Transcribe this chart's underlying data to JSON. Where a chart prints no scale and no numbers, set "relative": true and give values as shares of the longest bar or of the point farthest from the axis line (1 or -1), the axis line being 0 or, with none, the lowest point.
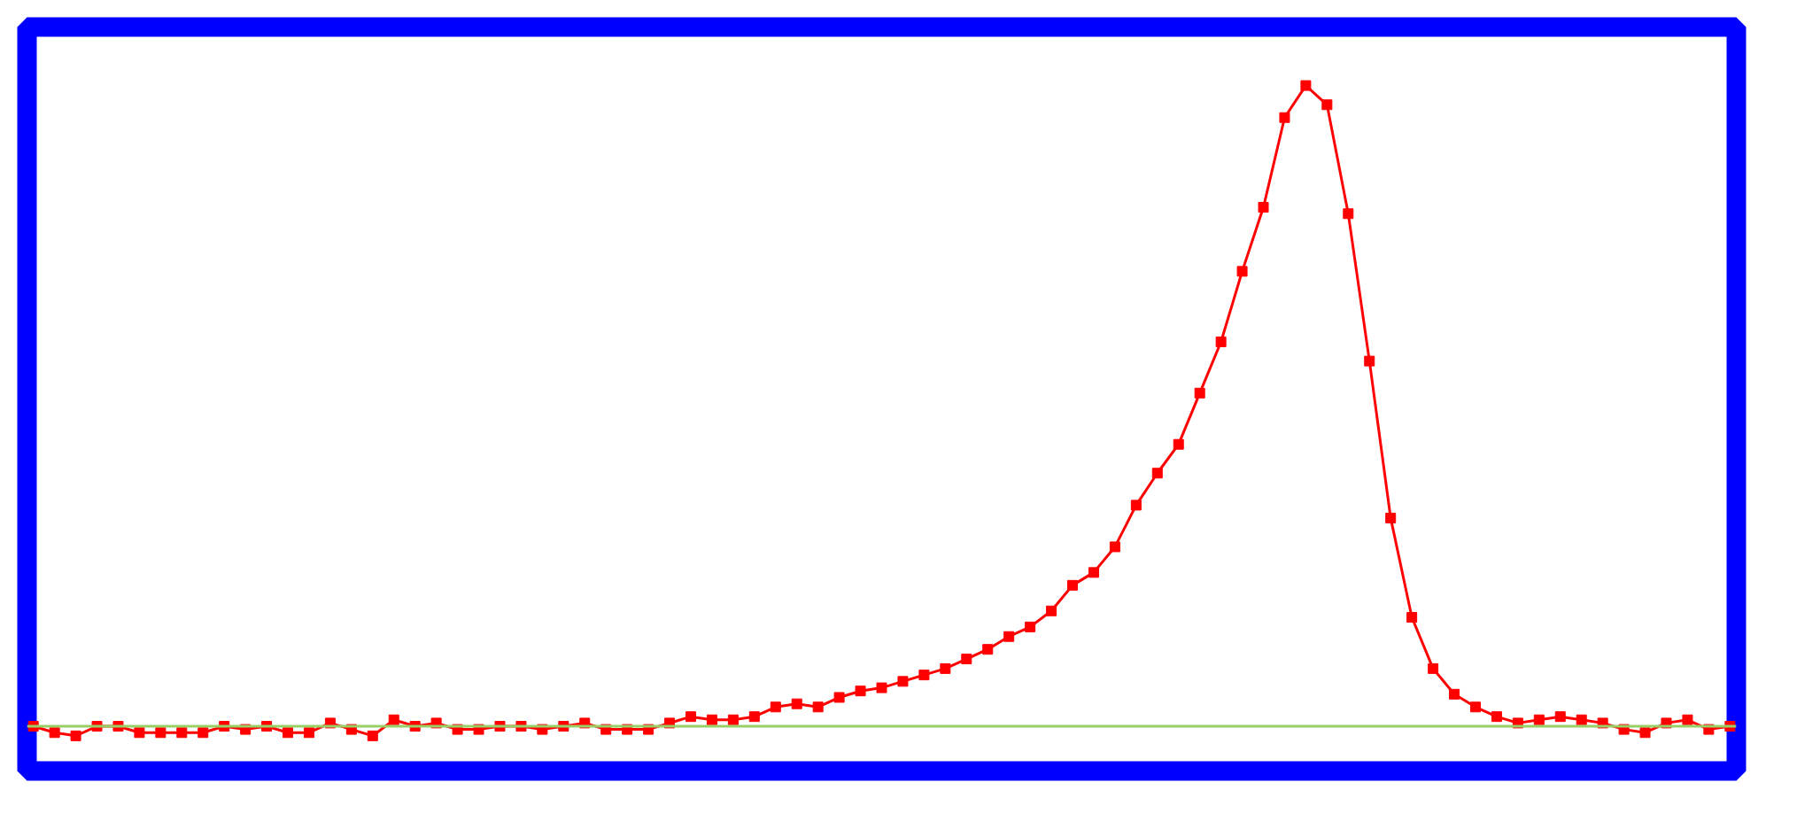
{
  "chart_data": {
    "type": "line",
    "relative": true,
    "marker": "square",
    "line_style": "solid",
    "grid": false,
    "tick_labels": false,
    "categories": [
      null,
      null,
      null,
      null,
      null,
      null,
      null,
      null,
      null,
      null,
      null,
      null,
      null,
      null,
      null,
      null,
      null,
      null,
      null,
      null,
      null,
      null,
      null,
      null,
      null,
      null,
      null,
      null,
      null,
      null,
      null,
      null,
      null,
      null,
      null,
      null,
      null,
      null,
      null,
      null,
      null,
      null,
      null,
      null,
      null,
      null,
      null,
      null,
      null,
      null,
      null,
      null,
      null,
      null,
      null,
      null,
      null,
      null,
      null,
      null,
      null,
      null,
      null,
      null,
      null,
      null,
      null,
      null,
      null,
      null,
      null,
      null,
      null,
      null,
      null,
      null,
      null,
      null,
      null,
      null,
      null
    ],
    "series": [
      {
        "color": "#ff0000",
        "values": [
          0.0,
          -0.01,
          -0.015,
          0.0,
          0.0,
          -0.01,
          -0.01,
          -0.01,
          -0.01,
          0.0,
          -0.005,
          0.0,
          -0.01,
          -0.01,
          0.005,
          -0.005,
          -0.015,
          0.01,
          0.0,
          0.005,
          -0.005,
          -0.005,
          0.0,
          0.0,
          -0.005,
          0.0,
          0.005,
          -0.005,
          -0.005,
          -0.005,
          0.005,
          0.015,
          0.01,
          0.01,
          0.015,
          0.03,
          0.035,
          0.03,
          0.045,
          0.055,
          0.06,
          0.07,
          0.08,
          0.09,
          0.105,
          0.12,
          0.14,
          0.155,
          0.18,
          0.22,
          0.24,
          0.28,
          0.345,
          0.395,
          0.44,
          0.52,
          0.6,
          0.71,
          0.81,
          0.95,
          1.0,
          0.97,
          0.8,
          0.57,
          0.325,
          0.17,
          0.09,
          0.05,
          0.03,
          0.015,
          0.005,
          0.01,
          0.015,
          0.01,
          0.005,
          -0.005,
          -0.01,
          0.005,
          0.01,
          -0.005,
          0.0
        ]
      }
    ],
    "ref_lines": [
      {
        "axis": "y",
        "value": 0,
        "color": "#99d066"
      }
    ]
  }
}
